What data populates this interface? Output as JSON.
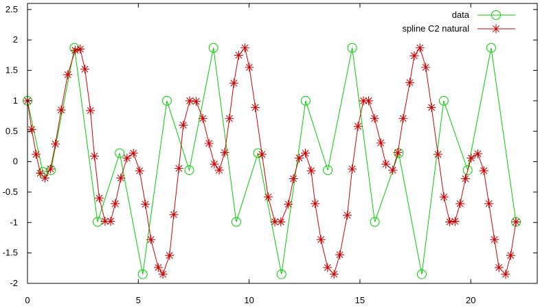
{
  "chart_data": {
    "type": "line",
    "title": "",
    "xlabel": "",
    "ylabel": "",
    "xlim": [
      0,
      23
    ],
    "ylim": [
      -2,
      2.6
    ],
    "xticks": [
      0,
      5,
      10,
      15,
      20
    ],
    "xtick_labels": [
      "0",
      "5",
      "10",
      "15",
      "20"
    ],
    "yticks": [
      -2,
      -1.5,
      -1,
      -0.5,
      0,
      0.5,
      1,
      1.5,
      2,
      2.5
    ],
    "ytick_labels": [
      "-2",
      "-1.5",
      "-1",
      "-0.5",
      "0",
      "0.5",
      "1",
      "1.5",
      "2",
      "2.5"
    ],
    "grid": false,
    "legend_position": "top-right",
    "series": [
      {
        "name": "data",
        "color": "#00cc00",
        "marker": "circle",
        "x": [
          0,
          0.69,
          1.06,
          2.12,
          3.16,
          4.16,
          5.2,
          6.29,
          7.3,
          8.39,
          9.42,
          10.4,
          11.46,
          12.55,
          13.55,
          14.65,
          15.67,
          16.75,
          17.79,
          18.78,
          19.86,
          20.92,
          22.04
        ],
        "values": [
          1.0,
          -0.17,
          -0.14,
          1.87,
          -0.99,
          0.14,
          -1.85,
          1.0,
          -0.14,
          1.87,
          -0.99,
          0.14,
          -1.85,
          1.0,
          -0.14,
          1.87,
          -0.99,
          0.14,
          -1.85,
          1.0,
          -0.14,
          1.87,
          -0.99
        ]
      },
      {
        "name": "spline C2 natural",
        "color": "#cc0000",
        "marker": "star",
        "x": [
          0,
          0.19,
          0.39,
          0.58,
          0.79,
          1.04,
          1.26,
          1.52,
          1.82,
          2.15,
          2.38,
          2.59,
          2.84,
          3.02,
          3.24,
          3.5,
          3.75,
          3.96,
          4.21,
          4.49,
          4.78,
          5.06,
          5.32,
          5.57,
          5.9,
          6.11,
          6.41,
          6.6,
          6.83,
          7.03,
          7.32,
          7.61,
          7.91,
          8.19,
          8.43,
          8.65,
          8.9,
          9.11,
          9.31,
          9.53,
          9.81,
          10.01,
          10.28,
          10.58,
          10.86,
          11.16,
          11.43,
          11.77,
          12.0,
          12.26,
          12.54,
          12.8,
          12.98,
          13.24,
          13.54,
          13.83,
          14.09,
          14.43,
          14.65,
          14.91,
          15.16,
          15.39,
          15.66,
          15.94,
          16.17,
          16.48,
          16.71,
          16.95,
          17.25,
          17.45,
          17.71,
          17.97,
          18.23,
          18.52,
          18.79,
          19.05,
          19.29,
          19.52,
          19.76,
          20.02,
          20.32,
          20.59,
          20.82,
          21.07,
          21.27,
          21.57,
          21.8,
          22.04
        ],
        "values": [
          1.0,
          0.53,
          0.12,
          -0.19,
          -0.27,
          -0.12,
          0.29,
          0.85,
          1.43,
          1.83,
          1.85,
          1.52,
          0.84,
          0.09,
          -0.6,
          -0.98,
          -0.98,
          -0.69,
          -0.27,
          0.06,
          0.14,
          -0.15,
          -0.7,
          -1.28,
          -1.74,
          -1.85,
          -1.54,
          -0.87,
          -0.11,
          0.6,
          1.0,
          0.99,
          0.71,
          0.3,
          -0.04,
          -0.14,
          0.15,
          0.71,
          1.29,
          1.75,
          1.87,
          1.55,
          0.89,
          0.12,
          -0.58,
          -0.99,
          -0.99,
          -0.7,
          -0.28,
          0.06,
          0.14,
          -0.15,
          -0.69,
          -1.28,
          -1.74,
          -1.85,
          -1.53,
          -0.88,
          -0.12,
          0.58,
          1.0,
          1.0,
          0.71,
          0.31,
          -0.04,
          -0.14,
          0.15,
          0.71,
          1.3,
          1.74,
          1.87,
          1.55,
          0.89,
          0.12,
          -0.58,
          -0.99,
          -0.98,
          -0.69,
          -0.28,
          0.06,
          0.13,
          -0.15,
          -0.69,
          -1.28,
          -1.74,
          -1.85,
          -1.54,
          -0.99
        ]
      }
    ]
  }
}
